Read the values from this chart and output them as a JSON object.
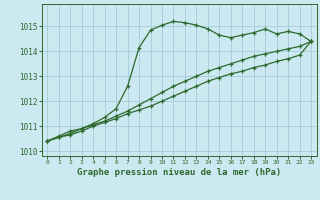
{
  "background_color": "#cce8f0",
  "grid_color": "#aacfdc",
  "line_color": "#2d6a2d",
  "title": "Graphe pression niveau de la mer (hPa)",
  "xlim": [
    -0.5,
    23.5
  ],
  "ylim": [
    1009.8,
    1015.9
  ],
  "yticks": [
    1010,
    1011,
    1012,
    1013,
    1014,
    1015
  ],
  "xticks": [
    0,
    1,
    2,
    3,
    4,
    5,
    6,
    7,
    8,
    9,
    10,
    11,
    12,
    13,
    14,
    15,
    16,
    17,
    18,
    19,
    20,
    21,
    22,
    23
  ],
  "series1": [
    1010.4,
    1010.6,
    1010.8,
    1010.9,
    1011.1,
    1011.35,
    1011.7,
    1012.6,
    1014.15,
    1014.85,
    1015.05,
    1015.2,
    1015.15,
    1015.05,
    1014.9,
    1014.65,
    1014.55,
    1014.65,
    1014.75,
    1014.9,
    1014.7,
    1014.8,
    1014.7,
    1014.4
  ],
  "series2": [
    1010.4,
    1010.55,
    1010.7,
    1010.9,
    1011.05,
    1011.2,
    1011.4,
    1011.6,
    1011.85,
    1012.1,
    1012.35,
    1012.6,
    1012.8,
    1013.0,
    1013.2,
    1013.35,
    1013.5,
    1013.65,
    1013.8,
    1013.9,
    1014.0,
    1014.1,
    1014.2,
    1014.4
  ],
  "series3": [
    1010.4,
    1010.55,
    1010.65,
    1010.8,
    1011.0,
    1011.15,
    1011.3,
    1011.5,
    1011.65,
    1011.8,
    1012.0,
    1012.2,
    1012.4,
    1012.6,
    1012.8,
    1012.95,
    1013.1,
    1013.2,
    1013.35,
    1013.45,
    1013.6,
    1013.7,
    1013.85,
    1014.4
  ]
}
